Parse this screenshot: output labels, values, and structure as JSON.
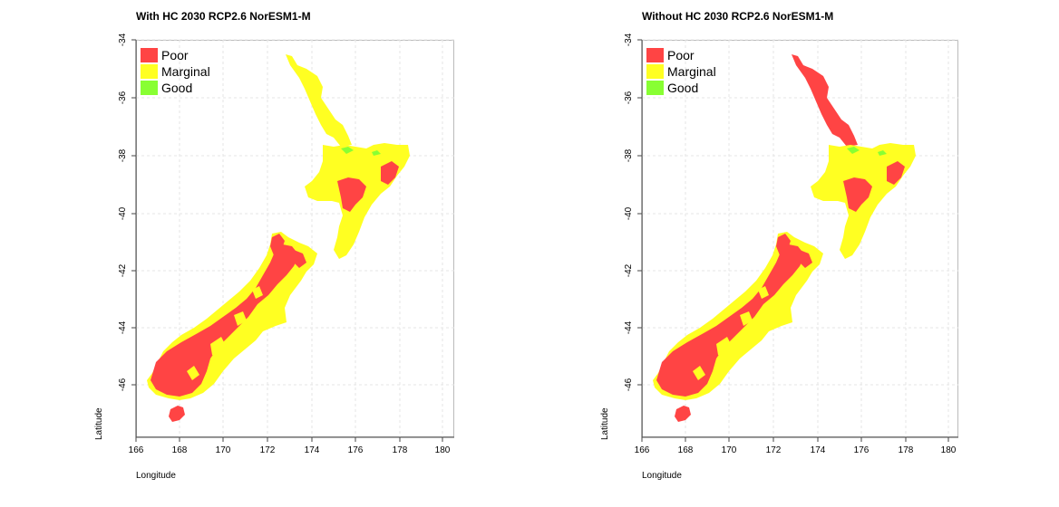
{
  "legend": {
    "items": [
      {
        "label": "Poor",
        "color": "#ff4444"
      },
      {
        "label": "Marginal",
        "color": "#ffff22"
      },
      {
        "label": "Good",
        "color": "#88ff33"
      }
    ]
  },
  "axes": {
    "xlabel": "Longitude",
    "ylabel": "Latitude",
    "x_ticks": [
      "166",
      "168",
      "170",
      "172",
      "174",
      "176",
      "178",
      "180"
    ],
    "y_ticks": [
      "-34",
      "-36",
      "-38",
      "-40",
      "-42",
      "-44",
      "-46"
    ]
  },
  "panels": [
    {
      "title": "With HC 2030 RCP2.6 NorESM1-M",
      "north_island_north_class": "Marginal"
    },
    {
      "title": "Without HC 2030 RCP2.6 NorESM1-M",
      "north_island_north_class": "Poor"
    }
  ]
}
